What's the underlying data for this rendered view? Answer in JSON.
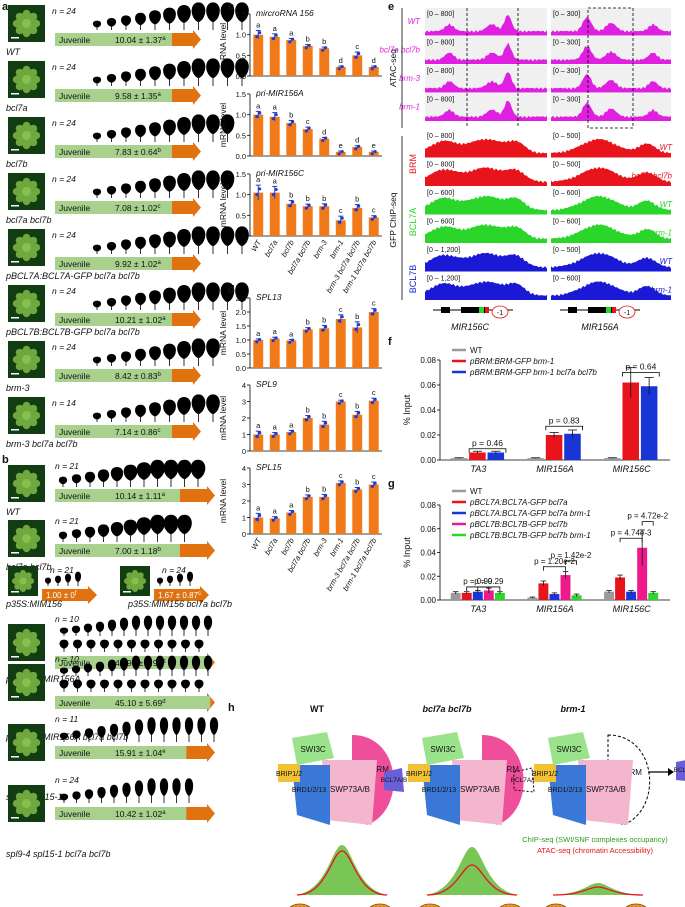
{
  "panel_letters": {
    "a": "a",
    "b": "b",
    "c": "c",
    "d": "d",
    "e": "e",
    "f": "f",
    "g": "g",
    "h": "h"
  },
  "panel_a": {
    "rows": [
      {
        "label": "WT",
        "n": "n = 24",
        "value": "10.04 ± 1.37",
        "sup": "a",
        "leaves": 11
      },
      {
        "label": "bcl7a",
        "n": "n = 24",
        "value": "9.58 ± 1.35",
        "sup": "a",
        "leaves": 11
      },
      {
        "label": "bcl7b",
        "n": "n = 24",
        "value": "7.83 ± 0.64",
        "sup": "b",
        "leaves": 10
      },
      {
        "label": "bcl7a bcl7b",
        "n": "n = 24",
        "value": "7.08 ± 1.02",
        "sup": "c",
        "leaves": 10
      },
      {
        "label": "pBCL7A:BCL7A-GFP bcl7a bcl7b",
        "n": "n = 24",
        "value": "9.92 ± 1.02",
        "sup": "a",
        "leaves": 11
      },
      {
        "label": "pBCL7B:BCL7B-GFP bcl7a bcl7b",
        "n": "n = 24",
        "value": "10.21 ± 1.02",
        "sup": "a",
        "leaves": 11
      },
      {
        "label": "brm-3",
        "n": "n = 24",
        "value": "8.42 ± 0.83",
        "sup": "b",
        "leaves": 9
      },
      {
        "label": "brm-3 bcl7a bcl7b",
        "n": "n = 14",
        "value": "7.14 ± 0.86",
        "sup": "c",
        "leaves": 9
      }
    ],
    "juvenile": "Juvenile"
  },
  "panel_b": {
    "rows": [
      {
        "label": "WT",
        "n": "n = 21",
        "value": "10.14 ± 1.11",
        "sup": "a",
        "leaves": 11
      },
      {
        "label": "bcl7a bcl7b",
        "n": "n = 21",
        "value": "7.00 ± 1.18",
        "sup": "b",
        "leaves": 10
      },
      {
        "label": "pUBQ10:MIR156A",
        "n": "n = 10",
        "value": "43.90 ± 5.90",
        "sup": "d",
        "leaves": 24
      },
      {
        "label": "pUBQ10:MIR156A bcl7a bcl7b",
        "n": "n = 10",
        "value": "45.10 ± 5.69",
        "sup": "d",
        "leaves": 24
      },
      {
        "label": "spl9-4 spl15-1",
        "n": "n = 11",
        "value": "15.91 ± 1.04",
        "sup": "e",
        "leaves": 13
      },
      {
        "label": "spl9-4 spl15-1 bcl7a bcl7b",
        "n": "n = 24",
        "value": "10.42 ± 1.02",
        "sup": "a",
        "leaves": 11
      }
    ],
    "small": [
      {
        "label": "p35S:MIM156",
        "n": "n = 21",
        "value": "1.00 ± 0",
        "sup": "f"
      },
      {
        "label": "p35S:MIM156 bcl7a bcl7b",
        "n": "n = 24",
        "value": "1.67 ± 0.87",
        "sup": "c"
      }
    ],
    "juvenile": "Juvenile"
  },
  "chart_data": [
    {
      "type": "bar",
      "panel": "c",
      "title": "mircroRNA 156",
      "ylabel": "mRNA level",
      "ylim": [
        0,
        1.5
      ],
      "yticks": [
        "0.0",
        "0.5",
        "1.0",
        "1.5"
      ],
      "categories": [
        "WT",
        "bcl7a",
        "bcl7b",
        "bcl7a bcl7b",
        "brm-3",
        "brm-1",
        "brm-3 bcl7a bcl7b",
        "brm-1 bcl7a bcl7b"
      ],
      "values": [
        1.0,
        0.95,
        0.87,
        0.73,
        0.67,
        0.22,
        0.5,
        0.22
      ],
      "errors": [
        0.1,
        0.07,
        0.04,
        0.03,
        0.03,
        0.02,
        0.08,
        0.02
      ],
      "letters": [
        "a",
        "a",
        "a",
        "b",
        "b",
        "d",
        "c",
        "d"
      ]
    },
    {
      "type": "bar",
      "panel": "c",
      "title": "pri-MIR156A",
      "ylabel": "mRNA level",
      "ylim": [
        0,
        1.5
      ],
      "yticks": [
        "0.0",
        "0.5",
        "1.0",
        "1.5"
      ],
      "categories": [
        "WT",
        "bcl7a",
        "bcl7b",
        "bcl7a bcl7b",
        "brm-3",
        "brm-1",
        "brm-3 bcl7a bcl7b",
        "brm-1 bcl7a bcl7b"
      ],
      "values": [
        1.0,
        0.95,
        0.8,
        0.65,
        0.42,
        0.1,
        0.22,
        0.1
      ],
      "errors": [
        0.08,
        0.1,
        0.06,
        0.05,
        0.03,
        0.02,
        0.03,
        0.02
      ],
      "letters": [
        "a",
        "a",
        "b",
        "c",
        "d",
        "e",
        "d",
        "e"
      ]
    },
    {
      "type": "bar",
      "panel": "c",
      "title": "pri-MIR156C",
      "ylabel": "mRNA level",
      "ylim": [
        0,
        1.5
      ],
      "yticks": [
        "0.0",
        "0.5",
        "1.0",
        "1.5"
      ],
      "categories": [
        "WT",
        "bcl7a",
        "bcl7b",
        "bcl7a bcl7b",
        "brm-3",
        "brm-1",
        "brm-3 bcl7a bcl7b",
        "brm-1 bcl7a bcl7b"
      ],
      "values": [
        1.05,
        1.05,
        0.78,
        0.72,
        0.72,
        0.38,
        0.68,
        0.45
      ],
      "errors": [
        0.18,
        0.15,
        0.08,
        0.05,
        0.06,
        0.1,
        0.08,
        0.04
      ],
      "letters": [
        "a",
        "a",
        "b",
        "b",
        "b",
        "c",
        "b",
        "c"
      ]
    },
    {
      "type": "bar",
      "panel": "d",
      "title": "SPL13",
      "ylabel": "mRNA level",
      "ylim": [
        0,
        2.5
      ],
      "yticks": [
        "0.0",
        "0.5",
        "1.0",
        "1.5",
        "2.0",
        "2.5"
      ],
      "categories": [
        "WT",
        "bcl7a",
        "bcl7b",
        "bcl7a bcl7b",
        "brm-3",
        "brm-1",
        "brm-3 bcl7a bcl7b",
        "brm-1 bcl7a bcl7b"
      ],
      "values": [
        1.0,
        1.05,
        0.98,
        1.38,
        1.42,
        1.75,
        1.45,
        2.0
      ],
      "errors": [
        0.04,
        0.05,
        0.04,
        0.06,
        0.1,
        0.15,
        0.2,
        0.12
      ],
      "letters": [
        "a",
        "a",
        "a",
        "b",
        "b",
        "c",
        "b",
        "c"
      ]
    },
    {
      "type": "bar",
      "panel": "d",
      "title": "SPL9",
      "ylabel": "mRNA level",
      "ylim": [
        0,
        4
      ],
      "yticks": [
        "0",
        "1",
        "2",
        "3",
        "4"
      ],
      "categories": [
        "WT",
        "bcl7a",
        "bcl7b",
        "bcl7a bcl7b",
        "brm-3",
        "brm-1",
        "brm-3 bcl7a bcl7b",
        "brm-1 bcl7a bcl7b"
      ],
      "values": [
        1.0,
        1.0,
        1.15,
        2.0,
        1.6,
        3.0,
        2.2,
        3.05
      ],
      "errors": [
        0.2,
        0.12,
        0.1,
        0.15,
        0.2,
        0.08,
        0.2,
        0.15
      ],
      "letters": [
        "a",
        "a",
        "a",
        "b",
        "b",
        "c",
        "b",
        "c"
      ]
    },
    {
      "type": "bar",
      "panel": "d",
      "title": "SPL15",
      "ylabel": "mRNA level",
      "ylim": [
        0,
        4
      ],
      "yticks": [
        "0",
        "1",
        "2",
        "3",
        "4"
      ],
      "categories": [
        "WT",
        "bcl7a",
        "bcl7b",
        "bcl7a bcl7b",
        "brm-3",
        "brm-1",
        "brm-3 bcl7a bcl7b",
        "brm-1 bcl7a bcl7b"
      ],
      "values": [
        1.0,
        0.95,
        1.3,
        2.25,
        2.25,
        3.1,
        2.7,
        3.0
      ],
      "errors": [
        0.25,
        0.1,
        0.12,
        0.12,
        0.15,
        0.12,
        0.12,
        0.15
      ],
      "letters": [
        "a",
        "a",
        "a",
        "b",
        "b",
        "c",
        "b",
        "c"
      ]
    },
    {
      "type": "bar",
      "panel": "f",
      "ylabel": "% Input",
      "ylim": [
        0,
        0.08
      ],
      "yticks": [
        "0.00",
        "0.02",
        "0.04",
        "0.06",
        "0.08"
      ],
      "categories": [
        "TA3",
        "MIR156A",
        "MIR156C"
      ],
      "series": [
        {
          "name": "WT",
          "color": "#9a9a9a",
          "values": [
            0.0015,
            0.0015,
            0.0015
          ],
          "errors": [
            0.0003,
            0.0003,
            0.0003
          ]
        },
        {
          "name": "pBRM:BRM-GFP brm-1",
          "color": "#e8141c",
          "values": [
            0.006,
            0.02,
            0.062
          ],
          "errors": [
            0.001,
            0.002,
            0.012
          ]
        },
        {
          "name": "pBRM:BRM-GFP brm-1 bcl7a bcl7b",
          "color": "#1a35d6",
          "values": [
            0.006,
            0.021,
            0.059
          ],
          "errors": [
            0.001,
            0.003,
            0.007
          ]
        }
      ],
      "pvalues": [
        "p = 0.46",
        "p = 0.83",
        "p = 0.64"
      ],
      "legend_position": "top-left"
    },
    {
      "type": "bar",
      "panel": "g",
      "ylabel": "% Input",
      "ylim": [
        0,
        0.08
      ],
      "yticks": [
        "0.00",
        "0.02",
        "0.04",
        "0.06",
        "0.08"
      ],
      "categories": [
        "TA3",
        "MIR156A",
        "MIR156C"
      ],
      "series": [
        {
          "name": "WT",
          "color": "#9a9a9a",
          "values": [
            0.006,
            0.002,
            0.007
          ],
          "errors": [
            0.001,
            0.0005,
            0.001
          ]
        },
        {
          "name": "pBCL7A:BCL7A-GFP bcl7a",
          "color": "#e8141c",
          "values": [
            0.006,
            0.014,
            0.019
          ],
          "errors": [
            0.001,
            0.002,
            0.002
          ]
        },
        {
          "name": "pBCL7A:BCL7A-GFP bcl7a brm-1",
          "color": "#1a35d6",
          "values": [
            0.007,
            0.005,
            0.007
          ],
          "errors": [
            0.001,
            0.001,
            0.001
          ]
        },
        {
          "name": "pBCL7B:BCL7B-GFP bcl7b",
          "color": "#ee1a8c",
          "values": [
            0.008,
            0.021,
            0.044
          ],
          "errors": [
            0.002,
            0.003,
            0.015
          ]
        },
        {
          "name": "pBCL7B:BCL7B-GFP bcl7b brm-1",
          "color": "#2bd62b",
          "values": [
            0.006,
            0.004,
            0.006
          ],
          "errors": [
            0.001,
            0.001,
            0.001
          ]
        }
      ],
      "pvalues": [
        "p = 0.99",
        "p = 0.29",
        "p = 1.20e-2",
        "p = 1.42e-2",
        "p = 4.74e-3",
        "p = 4.72e-2"
      ],
      "legend_position": "top-left"
    }
  ],
  "panel_e": {
    "atac_label": "ATAC-seq",
    "chip_label": "GFP ChIP-seq",
    "tracks": [
      {
        "group": "ATAC",
        "name": "WT",
        "color": "#e020e0",
        "r1": "[0 – 800]",
        "r2": "[0 – 300]"
      },
      {
        "group": "ATAC",
        "name": "bcl7a bcl7b",
        "color": "#e020e0",
        "r1": "[0 – 800]",
        "r2": "[0 – 300]"
      },
      {
        "group": "ATAC",
        "name": "brm-3",
        "color": "#e020e0",
        "r1": "[0 – 800]",
        "r2": "[0 – 300]"
      },
      {
        "group": "ATAC",
        "name": "brm-1",
        "color": "#e020e0",
        "r1": "[0 – 800]",
        "r2": "[0 – 300]"
      },
      {
        "group": "BRM",
        "name": "WT",
        "color": "#e8141c",
        "r1": "[0 – 800]",
        "r2": "[0 – 500]"
      },
      {
        "group": "BRM",
        "name": "bcl7a bcl7b",
        "color": "#e8141c",
        "r1": "[0 – 800]",
        "r2": "[0 – 500]"
      },
      {
        "group": "BCL7A",
        "name": "WT",
        "color": "#2bd62b",
        "r1": "[0 – 600]",
        "r2": "[0 – 600]"
      },
      {
        "group": "BCL7A",
        "name": "brm-1",
        "color": "#2bd62b",
        "r1": "[0 – 600]",
        "r2": "[0 – 600]"
      },
      {
        "group": "BCL7B",
        "name": "WT",
        "color": "#1a1ad6",
        "r1": "[0 – 1,200]",
        "r2": "[0 – 500]"
      },
      {
        "group": "BCL7B",
        "name": "brm-1",
        "color": "#1a1ad6",
        "r1": "[0 – 1,200]",
        "r2": "[0 – 600]"
      }
    ],
    "group_labels": {
      "BRM": "BRM",
      "BCL7A": "BCL7A",
      "BCL7B": "BCL7B"
    },
    "gene1": "MIR156C",
    "gene2": "MIR156A",
    "minus1": "-1"
  },
  "panel_h": {
    "titles": [
      "WT",
      "bcl7a bcl7b",
      "brm-1"
    ],
    "subunits": {
      "swi3c": "SWI3C",
      "brip": "BRIP1/2",
      "brd": "BRD1/2/13",
      "swp73": "SWP73A/B",
      "brm": "BRM",
      "bcl7": "BCL7A/B"
    },
    "legend_chip": "ChIP-seq (SWI/SNF complexes occupancy)",
    "legend_atac": "ATAC-seq (chromatin Accessibility)"
  }
}
